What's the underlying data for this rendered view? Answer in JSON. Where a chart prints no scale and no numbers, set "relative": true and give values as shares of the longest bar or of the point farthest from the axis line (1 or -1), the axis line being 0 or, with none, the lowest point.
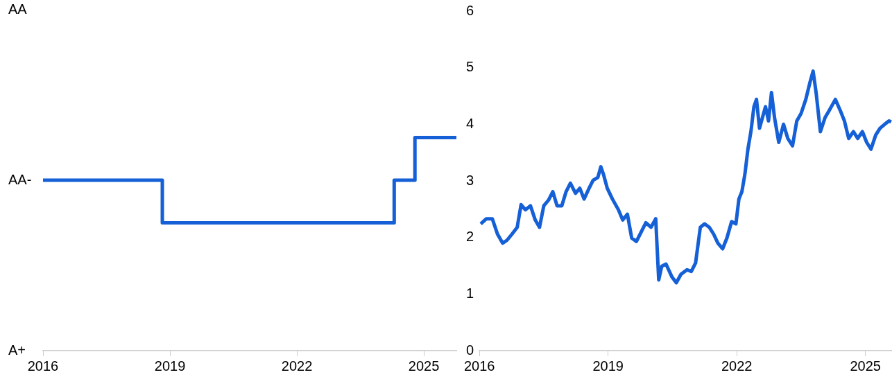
{
  "chart_data": [
    {
      "type": "step",
      "x": [
        2016,
        2018.82,
        2024.3,
        2024.79,
        2025.77
      ],
      "series": [
        {
          "color": "#1560d6",
          "values": [
            0.8,
            0.6,
            0.8,
            1,
            1
          ]
        }
      ],
      "relative": true,
      "annotations": [
        "AA",
        "AA-",
        "A+"
      ],
      "xlim": [
        2016,
        2025.77
      ],
      "xticks": [
        2016,
        2019,
        2022,
        2025
      ],
      "grid": false,
      "legend": false,
      "marker": "none",
      "line_style": "solid"
    },
    {
      "type": "line",
      "x": [
        2016.03,
        2016.16,
        2016.3,
        2016.42,
        2016.54,
        2016.64,
        2016.76,
        2016.88,
        2016.97,
        2017.07,
        2017.19,
        2017.3,
        2017.4,
        2017.5,
        2017.61,
        2017.71,
        2017.81,
        2017.92,
        2018.02,
        2018.12,
        2018.24,
        2018.34,
        2018.44,
        2018.55,
        2018.65,
        2018.76,
        2018.83,
        2018.89,
        2018.98,
        2019.1,
        2019.24,
        2019.34,
        2019.45,
        2019.55,
        2019.66,
        2019.76,
        2019.88,
        2020,
        2020.11,
        2020.18,
        2020.25,
        2020.35,
        2020.49,
        2020.59,
        2020.7,
        2020.84,
        2020.94,
        2021.04,
        2021.15,
        2021.25,
        2021.36,
        2021.46,
        2021.56,
        2021.67,
        2021.77,
        2021.88,
        2021.98,
        2022.05,
        2022.12,
        2022.19,
        2022.26,
        2022.33,
        2022.4,
        2022.46,
        2022.53,
        2022.6,
        2022.67,
        2022.74,
        2022.81,
        2022.88,
        2022.98,
        2023.09,
        2023.19,
        2023.3,
        2023.4,
        2023.5,
        2023.61,
        2023.71,
        2023.78,
        2023.85,
        2023.95,
        2024.06,
        2024.16,
        2024.3,
        2024.41,
        2024.51,
        2024.61,
        2024.72,
        2024.82,
        2024.93,
        2025.03,
        2025.13,
        2025.24,
        2025.34,
        2025.45,
        2025.55,
        2025.6
      ],
      "series": [
        {
          "color": "#1560d6",
          "values": [
            2.24,
            2.33,
            2.33,
            2.06,
            1.9,
            1.95,
            2.06,
            2.18,
            2.58,
            2.49,
            2.56,
            2.31,
            2.18,
            2.56,
            2.66,
            2.81,
            2.56,
            2.56,
            2.81,
            2.96,
            2.78,
            2.87,
            2.68,
            2.86,
            3.01,
            3.06,
            3.25,
            3.12,
            2.87,
            2.68,
            2.49,
            2.31,
            2.41,
            1.99,
            1.93,
            2.08,
            2.26,
            2.18,
            2.33,
            1.25,
            1.49,
            1.53,
            1.3,
            1.2,
            1.35,
            1.43,
            1.4,
            1.55,
            2.18,
            2.24,
            2.18,
            2.06,
            1.9,
            1.8,
            1.99,
            2.28,
            2.24,
            2.68,
            2.81,
            3.12,
            3.56,
            3.87,
            4.31,
            4.44,
            3.93,
            4.12,
            4.31,
            4.06,
            4.56,
            4.12,
            3.68,
            4,
            3.75,
            3.62,
            4.06,
            4.19,
            4.44,
            4.75,
            4.94,
            4.56,
            3.87,
            4.12,
            4.25,
            4.44,
            4.25,
            4.06,
            3.75,
            3.87,
            3.75,
            3.87,
            3.68,
            3.56,
            3.81,
            3.93,
            4,
            4.06,
            4.04
          ]
        }
      ],
      "xlim": [
        2016,
        2025.62
      ],
      "xticks": [
        2016,
        2019,
        2022,
        2025
      ],
      "ylim": [
        0,
        6
      ],
      "yticks": [
        0,
        1,
        2,
        3,
        4,
        5,
        6
      ],
      "grid": false,
      "legend": false,
      "marker": "none",
      "line_style": "solid"
    }
  ]
}
